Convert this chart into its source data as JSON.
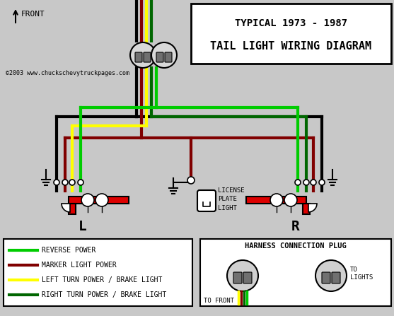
{
  "title_line1": "TYPICAL 1973 - 1987",
  "title_line2": "TAIL LIGHT WIRING DIAGRAM",
  "copyright": "©2003 www.chuckschevytruckpages.com",
  "bg_color": "#c8c8c8",
  "wire_colors": {
    "green_bright": "#00cc00",
    "green_dark": "#006600",
    "dark_red": "#800000",
    "yellow": "#ffff00",
    "black": "#000000",
    "white": "#ffffff",
    "red_light": "#dd0000"
  },
  "legend": [
    {
      "color": "#00cc00",
      "label": "REVERSE POWER"
    },
    {
      "color": "#800000",
      "label": "MARKER LIGHT POWER"
    },
    {
      "color": "#ffff00",
      "label": "LEFT TURN POWER / BRAKE LIGHT"
    },
    {
      "color": "#006600",
      "label": "RIGHT TURN POWER / BRAKE LIGHT"
    }
  ],
  "front_text": "FRONT",
  "label_L": "L",
  "label_R": "R",
  "license_plate_text": "LICENSE\nPLATE\nLIGHT",
  "harness_title": "HARNESS CONNECTION PLUG",
  "to_front": "TO FRONT",
  "to_lights": "TO\nLIGHTS"
}
